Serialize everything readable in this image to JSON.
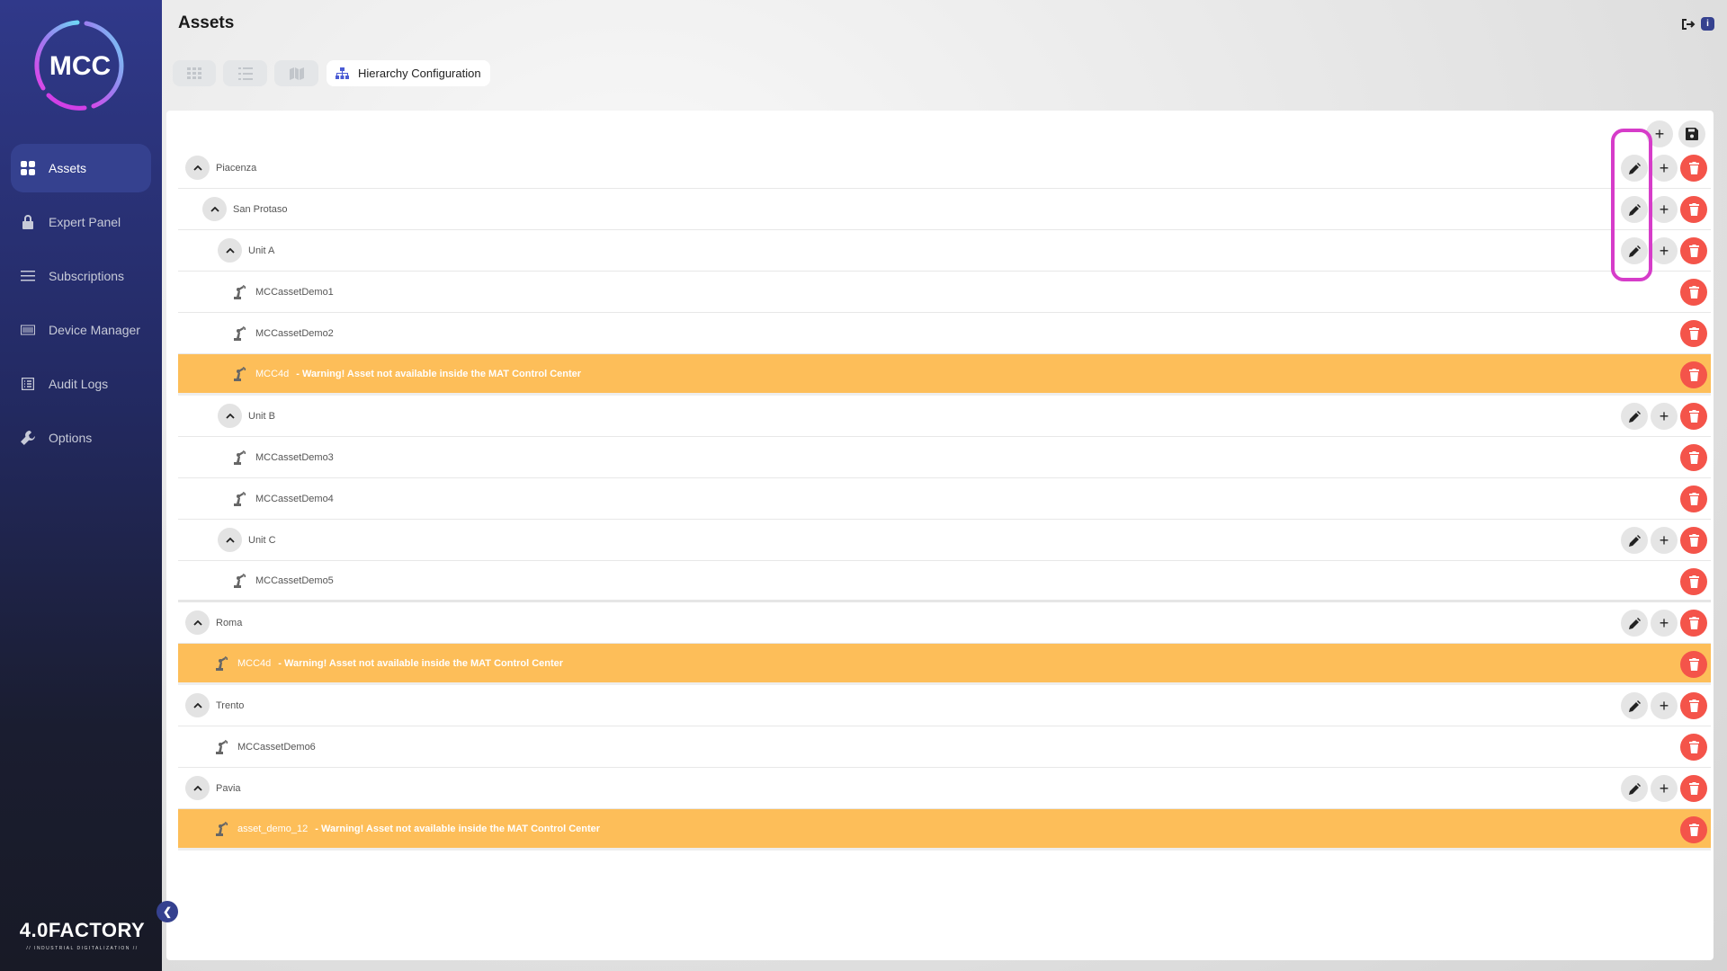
{
  "sidebar": {
    "logo_text": "MCC",
    "items": [
      {
        "label": "Assets",
        "icon": "grid-icon",
        "active": true
      },
      {
        "label": "Expert Panel",
        "icon": "lock-icon"
      },
      {
        "label": "Subscriptions",
        "icon": "menu-lines-icon"
      },
      {
        "label": "Device Manager",
        "icon": "device-icon"
      },
      {
        "label": "Audit Logs",
        "icon": "list-box-icon"
      },
      {
        "label": "Options",
        "icon": "wrench-icon"
      }
    ],
    "brand": "4.0FACTORY",
    "brand_tagline": "// INDUSTRIAL DIGITALIZATION //"
  },
  "header": {
    "title": "Assets"
  },
  "tabs": [
    {
      "icon": "grid-view-icon"
    },
    {
      "icon": "list-view-icon"
    },
    {
      "icon": "map-view-icon"
    },
    {
      "icon": "hierarchy-icon",
      "label": "Hierarchy Configuration",
      "selected": true
    }
  ],
  "colors": {
    "accent": "#35418f",
    "warning": "#fdbe59",
    "delete": "#f4544a",
    "highlight": "#d63cc9"
  },
  "tree": [
    {
      "label": "Piacenza",
      "level": 0,
      "type": "group"
    },
    {
      "label": "San Protaso",
      "level": 1,
      "type": "group"
    },
    {
      "label": "Unit A",
      "level": 2,
      "type": "group"
    },
    {
      "label": "MCCassetDemo1",
      "level": 3,
      "type": "asset"
    },
    {
      "label": "MCCassetDemo2",
      "level": 3,
      "type": "asset"
    },
    {
      "label": "MCC4d",
      "level": 3,
      "type": "asset",
      "warning": "- Warning! Asset not available inside the MAT Control Center"
    },
    {
      "label": "Unit B",
      "level": 2,
      "type": "group"
    },
    {
      "label": "MCCassetDemo3",
      "level": 3,
      "type": "asset"
    },
    {
      "label": "MCCassetDemo4",
      "level": 3,
      "type": "asset"
    },
    {
      "label": "Unit C",
      "level": 2,
      "type": "group"
    },
    {
      "label": "MCCassetDemo5",
      "level": 3,
      "type": "asset",
      "thick": true
    },
    {
      "label": "Roma",
      "level": 0,
      "type": "group"
    },
    {
      "label": "MCC4d",
      "level": 1,
      "type": "asset",
      "warning": "- Warning! Asset not available inside the MAT Control Center"
    },
    {
      "label": "Trento",
      "level": 0,
      "type": "group"
    },
    {
      "label": "MCCassetDemo6",
      "level": 1,
      "type": "asset"
    },
    {
      "label": "Pavia",
      "level": 0,
      "type": "group"
    },
    {
      "label": "asset_demo_12",
      "level": 1,
      "type": "asset",
      "warning": "- Warning! Asset not available inside the MAT Control Center"
    }
  ]
}
